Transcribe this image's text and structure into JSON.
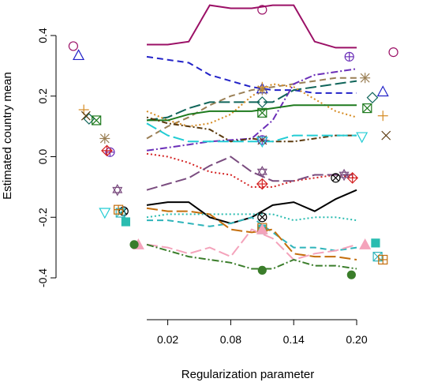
{
  "chart_data": {
    "type": "line",
    "title": "",
    "xlabel": "Regularization parameter",
    "ylabel": "Estimated country mean",
    "xlim": [
      0.0,
      0.2
    ],
    "ylim": [
      -0.4,
      0.4
    ],
    "x_ticks": [
      {
        "value": 0.02,
        "label": "0.02"
      },
      {
        "value": 0.08,
        "label": "0.08"
      },
      {
        "value": 0.14,
        "label": "0.14"
      },
      {
        "value": 0.2,
        "label": "0.20"
      }
    ],
    "y_ticks": [
      {
        "value": -0.4,
        "label": "-0.4"
      },
      {
        "value": -0.2,
        "label": "-0.2"
      },
      {
        "value": 0.0,
        "label": "0.0"
      },
      {
        "value": 0.2,
        "label": "0.2"
      },
      {
        "value": 0.4,
        "label": "0.4"
      }
    ],
    "x": [
      0.0,
      0.02,
      0.04,
      0.06,
      0.08,
      0.1,
      0.12,
      0.14,
      0.16,
      0.18,
      0.2
    ],
    "series": [
      {
        "color": "#9b1066",
        "dash": "solid",
        "values": [
          0.37,
          0.37,
          0.38,
          0.5,
          0.49,
          0.49,
          0.5,
          0.5,
          0.38,
          0.36,
          0.36
        ],
        "marker": "circle",
        "left": [
          -0.07,
          0.365
        ],
        "mid": 0.485,
        "right": [
          0.235,
          0.345
        ]
      },
      {
        "color": "#2323c8",
        "dash": "dashed",
        "values": [
          0.33,
          0.32,
          0.31,
          0.27,
          0.25,
          0.23,
          0.22,
          0.22,
          0.21,
          0.21,
          0.21
        ],
        "marker": "triangle",
        "left": [
          -0.065,
          0.335
        ],
        "mid": 0.225,
        "right": [
          0.225,
          0.215
        ]
      },
      {
        "color": "#9a7f55",
        "dash": "dashed",
        "values": [
          0.06,
          0.1,
          0.13,
          0.17,
          0.2,
          0.22,
          0.23,
          0.24,
          0.25,
          0.26,
          0.26
        ],
        "marker": "asterisk",
        "left": [
          -0.04,
          0.06
        ],
        "mid": 0.22,
        "right": [
          0.208,
          0.26
        ]
      },
      {
        "color": "#6b2fb8",
        "dash": "dashdot",
        "values": [
          0.02,
          0.03,
          0.04,
          0.05,
          0.055,
          0.06,
          0.12,
          0.24,
          0.27,
          0.28,
          0.29
        ],
        "marker": "circleplus",
        "left": [
          -0.035,
          0.015
        ],
        "mid": 0.055,
        "right": [
          0.193,
          0.33
        ]
      },
      {
        "color": "#10655a",
        "dash": "longdash",
        "values": [
          0.12,
          0.13,
          0.16,
          0.18,
          0.18,
          0.18,
          0.18,
          0.22,
          0.23,
          0.24,
          0.25
        ],
        "marker": "diamond",
        "left": [
          -0.055,
          0.125
        ],
        "mid": 0.18,
        "right": [
          0.215,
          0.195
        ]
      },
      {
        "color": "#d58a21",
        "dash": "dotted",
        "values": [
          0.15,
          0.12,
          0.1,
          0.11,
          0.14,
          0.2,
          0.24,
          0.23,
          0.19,
          0.15,
          0.13
        ],
        "marker": "plus",
        "left": [
          -0.06,
          0.155
        ],
        "mid": 0.23,
        "right": [
          0.225,
          0.135
        ]
      },
      {
        "color": "#1e7a1e",
        "dash": "solid",
        "values": [
          0.12,
          0.12,
          0.14,
          0.15,
          0.15,
          0.15,
          0.16,
          0.17,
          0.17,
          0.17,
          0.17
        ],
        "marker": "squarex",
        "left": [
          -0.048,
          0.12
        ],
        "mid": 0.145,
        "right": [
          0.21,
          0.16
        ]
      },
      {
        "color": "#5b3a0e",
        "dash": "dotdash",
        "values": [
          0.13,
          0.11,
          0.1,
          0.09,
          0.05,
          0.06,
          0.05,
          0.05,
          0.06,
          0.07,
          0.07
        ],
        "marker": "times",
        "left": [
          -0.058,
          0.135
        ],
        "mid": 0.055,
        "right": [
          0.228,
          0.07
        ]
      },
      {
        "color": "#22ccd4",
        "dash": "longdash",
        "values": [
          0.11,
          0.07,
          0.05,
          0.05,
          0.05,
          0.05,
          0.05,
          0.07,
          0.07,
          0.07,
          0.07
        ],
        "marker": "triangledown",
        "left": [
          -0.04,
          -0.185
        ],
        "mid": 0.05,
        "right": [
          0.205,
          0.065
        ]
      },
      {
        "color": "#d42222",
        "dash": "dotted",
        "values": [
          0.01,
          0.0,
          -0.02,
          -0.05,
          -0.06,
          -0.1,
          -0.1,
          -0.08,
          -0.07,
          -0.06,
          -0.07
        ],
        "marker": "diamondplus",
        "left": [
          -0.038,
          0.02
        ],
        "mid": -0.09,
        "right": [
          0.196,
          -0.07
        ]
      },
      {
        "color": "#7a4c7f",
        "dash": "longdash",
        "values": [
          -0.11,
          -0.09,
          -0.07,
          -0.03,
          0.0,
          -0.05,
          -0.08,
          -0.08,
          -0.06,
          -0.06,
          -0.06
        ],
        "marker": "star6",
        "left": [
          -0.028,
          -0.11
        ],
        "mid": -0.05,
        "right": [
          0.188,
          -0.06
        ]
      },
      {
        "color": "#000000",
        "dash": "solid",
        "values": [
          -0.16,
          -0.15,
          -0.15,
          -0.2,
          -0.22,
          -0.2,
          -0.16,
          -0.15,
          -0.18,
          -0.14,
          -0.11
        ],
        "marker": "circlex",
        "left": [
          -0.022,
          -0.18
        ],
        "mid": -0.2,
        "right": [
          0.18,
          -0.07
        ]
      },
      {
        "color": "#2abcb0",
        "dash": "dotted",
        "values": [
          -0.2,
          -0.19,
          -0.19,
          -0.19,
          -0.19,
          -0.19,
          -0.19,
          -0.21,
          -0.2,
          -0.2,
          -0.21
        ],
        "marker": "squarefill",
        "left": [
          -0.02,
          -0.215
        ],
        "mid": -0.24,
        "right": [
          0.218,
          -0.285
        ]
      },
      {
        "color": "#2fb4ba",
        "dash": "dashed",
        "values": [
          -0.21,
          -0.21,
          -0.22,
          -0.23,
          -0.22,
          -0.2,
          -0.25,
          -0.3,
          -0.3,
          -0.31,
          -0.3
        ],
        "marker": "squarex2",
        "left": [
          -0.025,
          -0.185
        ],
        "mid": -0.24,
        "right": [
          0.22,
          -0.33
        ]
      },
      {
        "color": "#c46e0c",
        "dash": "longdash",
        "values": [
          -0.17,
          -0.18,
          -0.18,
          -0.19,
          -0.24,
          -0.25,
          -0.24,
          -0.32,
          -0.33,
          -0.33,
          -0.34
        ],
        "marker": "squareplus",
        "left": [
          -0.027,
          -0.175
        ],
        "mid": -0.235,
        "right": [
          0.225,
          -0.34
        ]
      },
      {
        "color": "#f4a3bb",
        "dash": "longdash",
        "values": [
          -0.29,
          -0.3,
          -0.32,
          -0.3,
          -0.33,
          -0.24,
          -0.27,
          -0.34,
          -0.32,
          -0.31,
          -0.29
        ],
        "marker": "trianglefill",
        "left": [
          -0.008,
          -0.29
        ],
        "mid": -0.24,
        "right": [
          0.208,
          -0.29
        ]
      },
      {
        "color": "#3a7d2a",
        "dash": "dashdot",
        "values": [
          -0.29,
          -0.31,
          -0.33,
          -0.34,
          -0.35,
          -0.37,
          -0.37,
          -0.34,
          -0.36,
          -0.36,
          -0.37
        ],
        "marker": "circlefill",
        "left": [
          -0.012,
          -0.29
        ],
        "mid": -0.375,
        "right": [
          0.195,
          -0.39
        ]
      }
    ]
  }
}
